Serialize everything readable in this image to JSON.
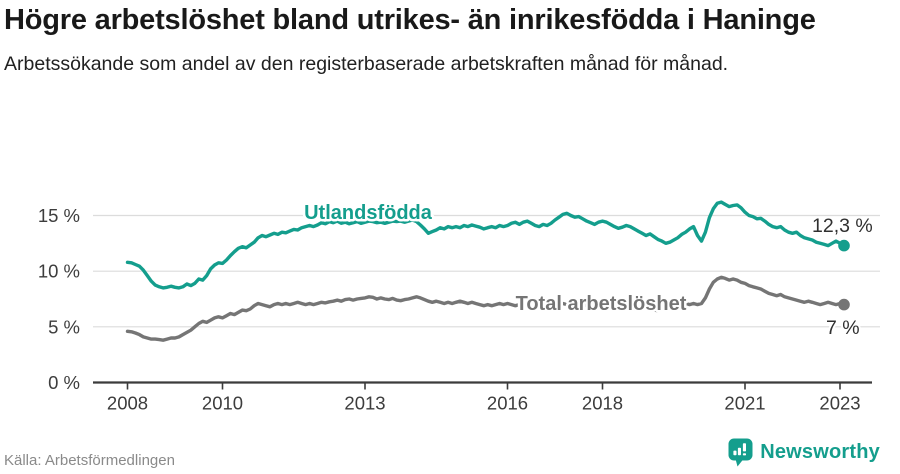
{
  "header": {
    "title": "Högre arbetslöshet bland utrikes- än inrikesfödda i Haninge",
    "subtitle": "Arbetssökande som andel av den registerbaserade arbetskraften månad för månad."
  },
  "footer": {
    "source": "Källa: Arbetsförmedlingen",
    "brand": "Newsworthy"
  },
  "colors": {
    "accent": "#149E8D",
    "gray": "#757575",
    "grid": "#dcdcdc",
    "axis": "#3b3b3b",
    "tick_label": "#3d3d3d",
    "value_label": "#303030"
  },
  "chart_data": {
    "type": "line",
    "title": "Högre arbetslöshet bland utrikes- än inrikesfödda i Haninge",
    "unit": "%",
    "frequency": "monthly",
    "start": "2008-01",
    "end": "2023-02",
    "ylim": [
      0,
      16.5
    ],
    "grid": true,
    "legend_position": "inline-labels",
    "y_ticks": [
      {
        "v": 0,
        "label": "0 %"
      },
      {
        "v": 5,
        "label": "5 %"
      },
      {
        "v": 10,
        "label": "10 %"
      },
      {
        "v": 15,
        "label": "15 %"
      }
    ],
    "x_ticks": [
      {
        "year": 2008,
        "label": "2008"
      },
      {
        "year": 2010,
        "label": "2010"
      },
      {
        "year": 2013,
        "label": "2013"
      },
      {
        "year": 2016,
        "label": "2016"
      },
      {
        "year": 2018,
        "label": "2018"
      },
      {
        "year": 2021,
        "label": "2021"
      },
      {
        "year": 2023,
        "label": "2023"
      }
    ],
    "series": [
      {
        "name": "Utlandsfödda",
        "color": "#149E8D",
        "end_label": "12,3 %",
        "end_value": 12.3,
        "values": [
          10.8,
          10.75,
          10.6,
          10.45,
          10.1,
          9.6,
          9.1,
          8.75,
          8.6,
          8.5,
          8.55,
          8.65,
          8.55,
          8.5,
          8.6,
          8.85,
          8.7,
          8.9,
          9.3,
          9.2,
          9.6,
          10.2,
          10.55,
          10.75,
          10.7,
          11.0,
          11.4,
          11.75,
          12.05,
          12.2,
          12.1,
          12.35,
          12.6,
          13.0,
          13.2,
          13.1,
          13.25,
          13.4,
          13.3,
          13.5,
          13.45,
          13.6,
          13.75,
          13.7,
          13.9,
          14.0,
          14.1,
          14.0,
          14.15,
          14.35,
          14.25,
          14.45,
          14.35,
          14.5,
          14.3,
          14.4,
          14.25,
          14.35,
          14.45,
          14.3,
          14.4,
          14.5,
          14.45,
          14.35,
          14.4,
          14.3,
          14.4,
          14.5,
          14.45,
          14.5,
          14.4,
          14.5,
          14.6,
          14.45,
          14.15,
          13.8,
          13.4,
          13.55,
          13.7,
          13.9,
          13.8,
          14.0,
          13.9,
          14.0,
          13.9,
          14.1,
          14.0,
          14.15,
          14.05,
          13.95,
          13.8,
          13.9,
          14.0,
          13.9,
          14.1,
          14.0,
          14.1,
          14.3,
          14.4,
          14.2,
          14.4,
          14.5,
          14.3,
          14.1,
          14.0,
          14.2,
          14.1,
          14.3,
          14.6,
          14.85,
          15.1,
          15.2,
          15.0,
          14.85,
          14.9,
          14.7,
          14.5,
          14.35,
          14.2,
          14.4,
          14.5,
          14.4,
          14.2,
          14.0,
          13.85,
          13.95,
          14.1,
          14.0,
          13.8,
          13.6,
          13.4,
          13.2,
          13.35,
          13.1,
          12.85,
          12.7,
          12.5,
          12.6,
          12.8,
          13.0,
          13.3,
          13.5,
          13.8,
          14.0,
          13.2,
          12.7,
          13.5,
          14.8,
          15.6,
          16.1,
          16.2,
          16.0,
          15.8,
          15.9,
          15.95,
          15.7,
          15.3,
          15.0,
          14.9,
          14.7,
          14.75,
          14.5,
          14.2,
          14.0,
          13.9,
          14.0,
          13.7,
          13.5,
          13.4,
          13.5,
          13.2,
          13.0,
          12.9,
          12.8,
          12.6,
          12.5,
          12.4,
          12.3,
          12.5,
          12.7,
          12.5,
          12.3
        ]
      },
      {
        "name": "Total arbetslöshet",
        "color": "#757575",
        "end_label": "7 %",
        "end_value": 7.0,
        "values": [
          4.6,
          4.55,
          4.45,
          4.3,
          4.1,
          4.0,
          3.9,
          3.9,
          3.85,
          3.8,
          3.9,
          4.0,
          4.0,
          4.1,
          4.3,
          4.5,
          4.7,
          5.0,
          5.3,
          5.5,
          5.4,
          5.6,
          5.8,
          5.9,
          5.8,
          6.0,
          6.2,
          6.1,
          6.3,
          6.5,
          6.45,
          6.6,
          6.9,
          7.1,
          7.0,
          6.9,
          6.8,
          7.0,
          7.1,
          7.0,
          7.1,
          7.0,
          7.1,
          7.2,
          7.1,
          7.0,
          7.1,
          7.0,
          7.1,
          7.2,
          7.15,
          7.25,
          7.3,
          7.4,
          7.3,
          7.45,
          7.5,
          7.4,
          7.5,
          7.55,
          7.6,
          7.7,
          7.65,
          7.5,
          7.6,
          7.5,
          7.45,
          7.55,
          7.4,
          7.35,
          7.45,
          7.5,
          7.6,
          7.7,
          7.6,
          7.45,
          7.3,
          7.2,
          7.3,
          7.2,
          7.1,
          7.2,
          7.1,
          7.2,
          7.3,
          7.2,
          7.1,
          7.2,
          7.1,
          7.0,
          6.9,
          7.0,
          6.9,
          7.0,
          7.1,
          7.0,
          7.1,
          7.0,
          6.9,
          7.0,
          6.9,
          6.8,
          6.9,
          7.0,
          6.9,
          7.0,
          6.9,
          7.0,
          7.1,
          7.2,
          7.1,
          7.0,
          7.1,
          7.0,
          6.9,
          7.0,
          6.9,
          6.8,
          6.9,
          7.0,
          7.0,
          6.9,
          6.8,
          6.7,
          6.6,
          6.7,
          6.8,
          6.7,
          6.6,
          6.5,
          6.6,
          6.7,
          6.6,
          6.5,
          6.45,
          6.55,
          6.6,
          6.7,
          6.8,
          6.9,
          7.0,
          7.1,
          7.0,
          7.1,
          7.0,
          7.1,
          7.6,
          8.4,
          9.0,
          9.3,
          9.45,
          9.35,
          9.2,
          9.3,
          9.2,
          9.0,
          8.9,
          8.7,
          8.6,
          8.5,
          8.4,
          8.2,
          8.0,
          7.9,
          7.8,
          7.9,
          7.7,
          7.6,
          7.5,
          7.4,
          7.3,
          7.2,
          7.3,
          7.2,
          7.1,
          7.0,
          7.1,
          7.2,
          7.1,
          7.0,
          7.1,
          7.0
        ]
      }
    ]
  }
}
